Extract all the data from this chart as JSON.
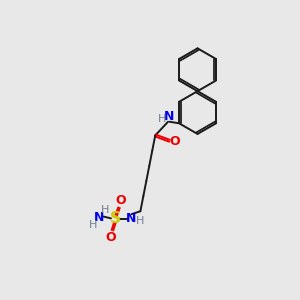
{
  "bg_color": "#e8e8e8",
  "bond_color": "#1a1a1a",
  "N_color": "#0000ee",
  "O_color": "#ee0000",
  "S_color": "#cccc00",
  "H_color": "#708090",
  "line_width": 1.4,
  "font_size": 8.5,
  "figsize": [
    3.0,
    3.0
  ],
  "dpi": 100,
  "xlim": [
    0,
    10
  ],
  "ylim": [
    0,
    10
  ]
}
